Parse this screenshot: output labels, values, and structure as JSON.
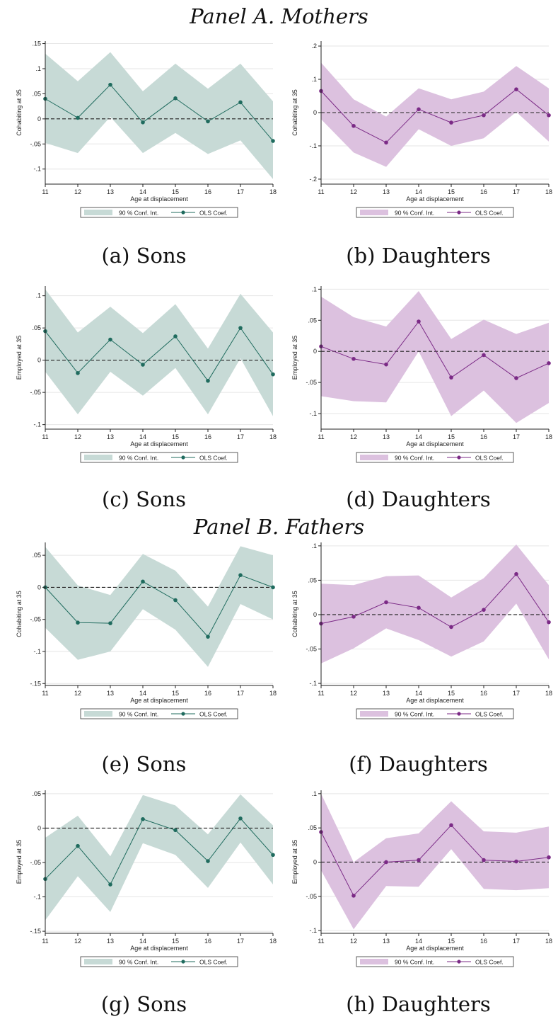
{
  "panels": [
    {
      "title": "Panel A. Mothers"
    },
    {
      "title": "Panel B. Fathers"
    }
  ],
  "colors": {
    "sons_band": "#c7dad6",
    "sons_line": "#1f6b5e",
    "daughters_band": "#dcc1df",
    "daughters_line": "#7b2a86",
    "grid": "#e6e6e6",
    "axis": "#222222"
  },
  "chart_data": [
    {
      "type": "line",
      "caption": "(a) Sons",
      "group": "sons",
      "xlabel": "Age at displacement",
      "ylabel": "Cohabiting at 35",
      "x": [
        11,
        12,
        13,
        14,
        15,
        16,
        17,
        18
      ],
      "ylim": [
        -0.13,
        0.155
      ],
      "yticks": [
        0.15,
        0.1,
        0.05,
        0,
        -0.05,
        -0.1
      ],
      "ytick_labels": [
        ".15",
        ".1",
        ".05",
        "0",
        "-.05",
        "-.1"
      ],
      "coef": [
        0.04,
        0.002,
        0.068,
        -0.007,
        0.041,
        -0.005,
        0.033,
        -0.044
      ],
      "ci_upper": [
        0.13,
        0.075,
        0.133,
        0.055,
        0.11,
        0.06,
        0.11,
        0.035
      ],
      "ci_lower": [
        -0.048,
        -0.068,
        0.004,
        -0.068,
        -0.028,
        -0.07,
        -0.043,
        -0.12
      ],
      "legend": {
        "ci": "90 % Conf. Int.",
        "coef": "OLS Coef."
      }
    },
    {
      "type": "line",
      "caption": "(b) Daughters",
      "group": "daughters",
      "xlabel": "Age at displacement",
      "ylabel": "Cohabiting at 35",
      "x": [
        11,
        12,
        13,
        14,
        15,
        16,
        17,
        18
      ],
      "ylim": [
        -0.215,
        0.215
      ],
      "yticks": [
        0.2,
        0.1,
        0,
        -0.1,
        -0.2
      ],
      "ytick_labels": [
        ".2",
        ".1",
        "0",
        "-.1",
        "-.2"
      ],
      "coef": [
        0.065,
        -0.04,
        -0.09,
        0.01,
        -0.03,
        -0.008,
        0.07,
        -0.008
      ],
      "ci_upper": [
        0.15,
        0.04,
        -0.012,
        0.073,
        0.04,
        0.063,
        0.14,
        0.073
      ],
      "ci_lower": [
        -0.02,
        -0.12,
        -0.163,
        -0.05,
        -0.1,
        -0.077,
        0.002,
        -0.087
      ],
      "legend": {
        "ci": "90 % Conf. Int.",
        "coef": "OLS Coef."
      }
    },
    {
      "type": "line",
      "caption": "(c) Sons",
      "group": "sons",
      "xlabel": "Age at displacement",
      "ylabel": "Employed at 35",
      "x": [
        11,
        12,
        13,
        14,
        15,
        16,
        17,
        18
      ],
      "ylim": [
        -0.107,
        0.115
      ],
      "yticks": [
        0.1,
        0.05,
        0,
        -0.05,
        -0.1
      ],
      "ytick_labels": [
        ".1",
        ".05",
        "0",
        "-.05",
        "-.1"
      ],
      "coef": [
        0.045,
        -0.02,
        0.032,
        -0.007,
        0.037,
        -0.032,
        0.05,
        -0.022
      ],
      "ci_upper": [
        0.11,
        0.043,
        0.083,
        0.042,
        0.087,
        0.018,
        0.103,
        0.043
      ],
      "ci_lower": [
        -0.018,
        -0.084,
        -0.018,
        -0.055,
        -0.012,
        -0.084,
        0.003,
        -0.087
      ],
      "legend": {
        "ci": "90 % Conf. Int.",
        "coef": "OLS Coef."
      }
    },
    {
      "type": "line",
      "caption": "(d) Daughters",
      "group": "daughters",
      "xlabel": "Age at displacement",
      "ylabel": "Employed at 35",
      "x": [
        11,
        12,
        13,
        14,
        15,
        16,
        17,
        18
      ],
      "ylim": [
        -0.125,
        0.105
      ],
      "yticks": [
        0.1,
        0.05,
        0,
        -0.05,
        -0.1
      ],
      "ytick_labels": [
        ".1",
        ".05",
        "0",
        "-.05",
        "-.1"
      ],
      "coef": [
        0.008,
        -0.012,
        -0.021,
        0.048,
        -0.042,
        -0.006,
        -0.043,
        -0.019
      ],
      "ci_upper": [
        0.088,
        0.055,
        0.04,
        0.097,
        0.02,
        0.051,
        0.028,
        0.046
      ],
      "ci_lower": [
        -0.072,
        -0.08,
        -0.082,
        0.0,
        -0.104,
        -0.063,
        -0.115,
        -0.083
      ],
      "legend": {
        "ci": "90 % Conf. Int.",
        "coef": "OLS Coef."
      }
    },
    {
      "type": "line",
      "caption": "(e) Sons",
      "group": "sons",
      "xlabel": "Age at displacement",
      "ylabel": "Cohabiting at 35",
      "x": [
        11,
        12,
        13,
        14,
        15,
        16,
        17,
        18
      ],
      "ylim": [
        -0.153,
        0.07
      ],
      "yticks": [
        0.05,
        0,
        -0.05,
        -0.1,
        -0.15
      ],
      "ytick_labels": [
        ".05",
        "0",
        "-.05",
        "-.1",
        "-.15"
      ],
      "coef": [
        0.0,
        -0.055,
        -0.056,
        0.009,
        -0.02,
        -0.077,
        0.019,
        0.0
      ],
      "ci_upper": [
        0.063,
        0.003,
        -0.012,
        0.052,
        0.026,
        -0.03,
        0.064,
        0.05
      ],
      "ci_lower": [
        -0.063,
        -0.113,
        -0.1,
        -0.034,
        -0.066,
        -0.124,
        -0.026,
        -0.05
      ],
      "legend": {
        "ci": "90 % Conf. Int.",
        "coef": "OLS Coef."
      }
    },
    {
      "type": "line",
      "caption": "(f) Daughters",
      "group": "daughters",
      "xlabel": "Age at displacement",
      "ylabel": "Cohabiting at 35",
      "x": [
        11,
        12,
        13,
        14,
        15,
        16,
        17,
        18
      ],
      "ylim": [
        -0.103,
        0.105
      ],
      "yticks": [
        0.1,
        0.05,
        0,
        -0.05,
        -0.1
      ],
      "ytick_labels": [
        ".1",
        ".05",
        "0",
        "-.05",
        "-.1"
      ],
      "coef": [
        -0.013,
        -0.003,
        0.018,
        0.01,
        -0.018,
        0.007,
        0.059,
        -0.011
      ],
      "ci_upper": [
        0.045,
        0.043,
        0.056,
        0.057,
        0.025,
        0.053,
        0.102,
        0.043
      ],
      "ci_lower": [
        -0.071,
        -0.049,
        -0.02,
        -0.037,
        -0.061,
        -0.039,
        0.016,
        -0.065
      ],
      "legend": {
        "ci": "90 % Conf. Int.",
        "coef": "OLS Coef."
      }
    },
    {
      "type": "line",
      "caption": "(g) Sons",
      "group": "sons",
      "xlabel": "Age at displacement",
      "ylabel": "Employed at 35",
      "x": [
        11,
        12,
        13,
        14,
        15,
        16,
        17,
        18
      ],
      "ylim": [
        -0.153,
        0.055
      ],
      "yticks": [
        0.05,
        0,
        -0.05,
        -0.1,
        -0.15
      ],
      "ytick_labels": [
        ".05",
        "0",
        "-.05",
        "-.1",
        "-.15"
      ],
      "coef": [
        -0.074,
        -0.026,
        -0.082,
        0.013,
        -0.003,
        -0.048,
        0.014,
        -0.039
      ],
      "ci_upper": [
        -0.014,
        0.018,
        -0.041,
        0.048,
        0.033,
        -0.009,
        0.049,
        0.004
      ],
      "ci_lower": [
        -0.134,
        -0.07,
        -0.122,
        -0.022,
        -0.039,
        -0.087,
        -0.021,
        -0.082
      ],
      "legend": {
        "ci": "90 % Conf. Int.",
        "coef": "OLS Coef."
      }
    },
    {
      "type": "line",
      "caption": "(h) Daughters",
      "group": "daughters",
      "xlabel": "Age at displacement",
      "ylabel": "Employed at 35",
      "x": [
        11,
        12,
        13,
        14,
        15,
        16,
        17,
        18
      ],
      "ylim": [
        -0.104,
        0.105
      ],
      "yticks": [
        0.1,
        0.05,
        0,
        -0.05,
        -0.1
      ],
      "ytick_labels": [
        ".1",
        ".05",
        "0",
        "-.05",
        "-.1"
      ],
      "coef": [
        0.044,
        -0.049,
        0.0,
        0.003,
        0.054,
        0.003,
        0.001,
        0.007
      ],
      "ci_upper": [
        0.1,
        0.0,
        0.035,
        0.042,
        0.089,
        0.045,
        0.043,
        0.052
      ],
      "ci_lower": [
        -0.012,
        -0.098,
        -0.035,
        -0.036,
        0.019,
        -0.039,
        -0.041,
        -0.038
      ],
      "legend": {
        "ci": "90 % Conf. Int.",
        "coef": "OLS Coef."
      }
    }
  ]
}
